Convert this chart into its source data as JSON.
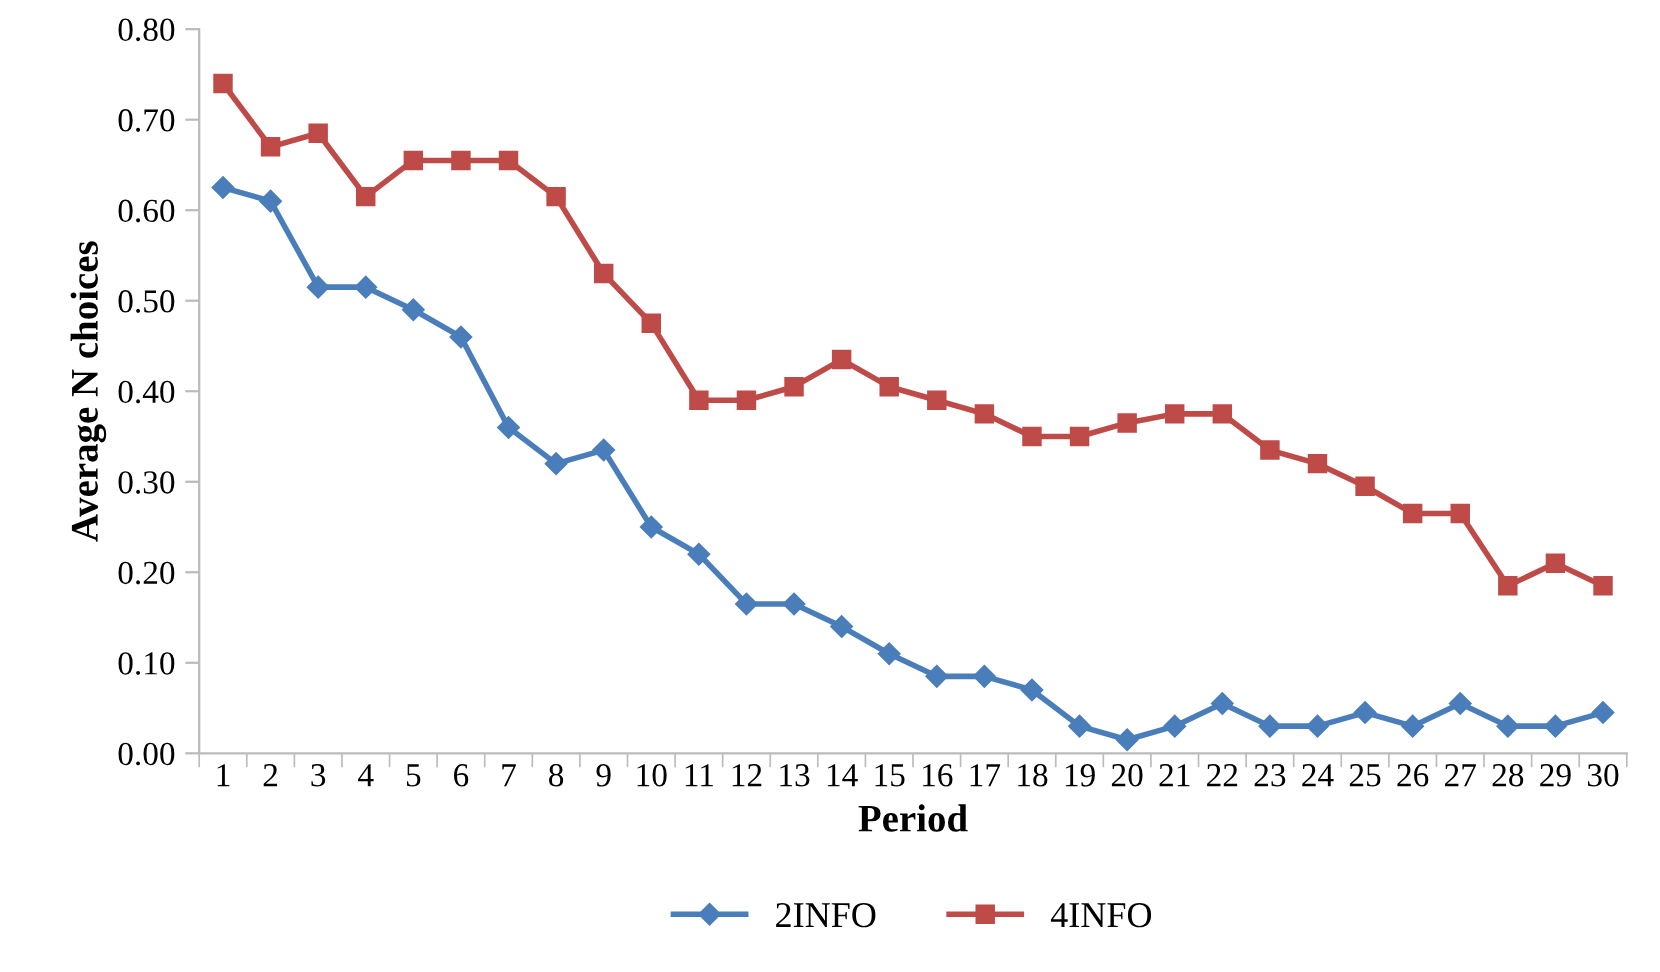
{
  "chart_data": {
    "type": "line",
    "xlabel": "Period",
    "ylabel": "Average N choices",
    "categories": [
      "1",
      "2",
      "3",
      "4",
      "5",
      "6",
      "7",
      "8",
      "9",
      "10",
      "11",
      "12",
      "13",
      "14",
      "15",
      "16",
      "17",
      "18",
      "19",
      "20",
      "21",
      "22",
      "23",
      "24",
      "25",
      "26",
      "27",
      "28",
      "29",
      "30"
    ],
    "series": [
      {
        "name": "2INFO",
        "color": "#4a7ebb",
        "marker": "diamond",
        "values": [
          0.625,
          0.61,
          0.515,
          0.515,
          0.49,
          0.46,
          0.36,
          0.32,
          0.335,
          0.25,
          0.22,
          0.165,
          0.165,
          0.14,
          0.11,
          0.085,
          0.085,
          0.07,
          0.03,
          0.015,
          0.03,
          0.055,
          0.03,
          0.03,
          0.045,
          0.03,
          0.055,
          0.03,
          0.03,
          0.045
        ]
      },
      {
        "name": "4INFO",
        "color": "#be4b48",
        "marker": "square",
        "values": [
          0.74,
          0.67,
          0.685,
          0.615,
          0.655,
          0.655,
          0.655,
          0.615,
          0.53,
          0.475,
          0.39,
          0.39,
          0.405,
          0.435,
          0.405,
          0.39,
          0.375,
          0.35,
          0.35,
          0.365,
          0.375,
          0.375,
          0.335,
          0.32,
          0.295,
          0.265,
          0.265,
          0.185,
          0.21,
          0.185
        ]
      }
    ],
    "ylim": [
      0,
      0.8
    ],
    "yticks": [
      {
        "value": 0,
        "label": "0.00"
      },
      {
        "value": 0.1,
        "label": "0.10"
      },
      {
        "value": 0.2,
        "label": "0.20"
      },
      {
        "value": 0.3,
        "label": "0.30"
      },
      {
        "value": 0.4,
        "label": "0.40"
      },
      {
        "value": 0.5,
        "label": "0.50"
      },
      {
        "value": 0.6,
        "label": "0.60"
      },
      {
        "value": 0.7,
        "label": "0.70"
      },
      {
        "value": 0.8,
        "label": "0.80"
      }
    ],
    "grid": false,
    "legend": "bottom",
    "line_style": "solid"
  }
}
